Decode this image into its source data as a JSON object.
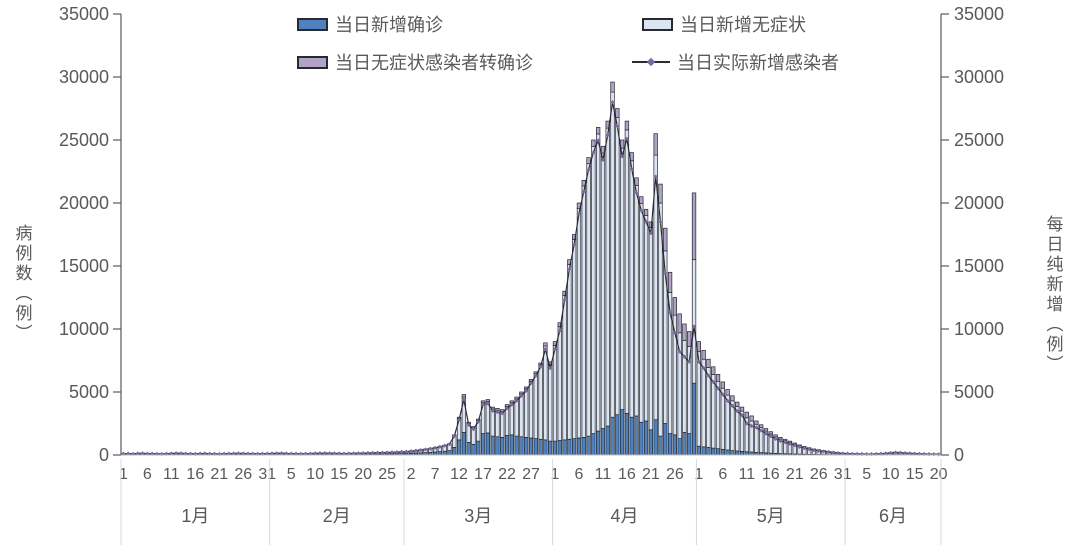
{
  "chart_data": {
    "type": "bar",
    "subtype": "stacked-bars-with-line-overlay",
    "title": "",
    "ylabel_left": "病例数（例）",
    "ylabel_right": "每日纯新增（例）",
    "ylim": [
      0,
      35000
    ],
    "yticks": [
      0,
      5000,
      10000,
      15000,
      20000,
      25000,
      30000,
      35000
    ],
    "grid": false,
    "legend_position": "top-inside-two-columns",
    "months": [
      {
        "label": "1月",
        "days": 31
      },
      {
        "label": "2月",
        "days": 28
      },
      {
        "label": "3月",
        "days": 31
      },
      {
        "label": "4月",
        "days": 30
      },
      {
        "label": "5月",
        "days": 31
      },
      {
        "label": "6月",
        "days": 20
      }
    ],
    "x_tick_interval_days": 5,
    "x_tick_labels": [
      "1",
      "6",
      "11",
      "16",
      "21",
      "26",
      "31",
      "5",
      "10",
      "15",
      "20",
      "25",
      "2",
      "7",
      "12",
      "17",
      "22",
      "27",
      "1",
      "6",
      "11",
      "16",
      "21",
      "26",
      "1",
      "6",
      "11",
      "16",
      "21",
      "26",
      "31",
      "5",
      "10",
      "15",
      "20"
    ],
    "colors": {
      "axis_text": "#595959",
      "axis_line": "#595959",
      "x_axis_line": "#bfbfbf",
      "separator": "#d9d9d9",
      "bar_border": "#23272f"
    },
    "series": [
      {
        "name": "当日新增确诊",
        "type": "bar",
        "stack_order": 0,
        "color": "#4f81bd",
        "values": [
          40,
          45,
          35,
          50,
          55,
          45,
          40,
          35,
          30,
          40,
          50,
          60,
          55,
          45,
          40,
          35,
          45,
          50,
          40,
          35,
          30,
          40,
          45,
          50,
          55,
          50,
          45,
          40,
          35,
          40,
          45,
          45,
          50,
          55,
          45,
          40,
          35,
          30,
          35,
          40,
          50,
          55,
          60,
          55,
          50,
          45,
          40,
          45,
          50,
          55,
          60,
          65,
          70,
          75,
          80,
          85,
          90,
          100,
          110,
          120,
          135,
          150,
          170,
          190,
          215,
          240,
          270,
          300,
          350,
          600,
          1200,
          1800,
          1000,
          850,
          1100,
          1700,
          1750,
          1500,
          1450,
          1400,
          1550,
          1600,
          1500,
          1450,
          1400,
          1350,
          1300,
          1250,
          1200,
          1100,
          1100,
          1150,
          1200,
          1250,
          1300,
          1350,
          1400,
          1500,
          1700,
          1900,
          2100,
          2300,
          3000,
          3200,
          3600,
          3300,
          3000,
          3100,
          2600,
          2700,
          2000,
          2800,
          1500,
          2500,
          1700,
          1600,
          1300,
          1800,
          1700,
          5700,
          700,
          650,
          600,
          550,
          500,
          450,
          400,
          350,
          320,
          290,
          260,
          240,
          210,
          190,
          170,
          150,
          130,
          110,
          100,
          90,
          80,
          70,
          60,
          50,
          45,
          40,
          35,
          30,
          25,
          22,
          20,
          15,
          13,
          12,
          11,
          10,
          10,
          12,
          14,
          16,
          20,
          25,
          22,
          19,
          16,
          14,
          12,
          10,
          9,
          8,
          7
        ]
      },
      {
        "name": "当日新增无症状",
        "type": "bar",
        "stack_order": 1,
        "color": "#dce6f2",
        "values": [
          70,
          75,
          65,
          80,
          85,
          75,
          70,
          65,
          60,
          70,
          80,
          90,
          85,
          75,
          70,
          65,
          75,
          80,
          70,
          65,
          60,
          70,
          75,
          80,
          85,
          80,
          75,
          70,
          65,
          70,
          75,
          85,
          90,
          95,
          85,
          80,
          75,
          70,
          75,
          80,
          90,
          95,
          100,
          95,
          90,
          85,
          80,
          85,
          90,
          95,
          100,
          105,
          110,
          115,
          120,
          125,
          130,
          140,
          150,
          160,
          185,
          210,
          240,
          270,
          305,
          350,
          400,
          460,
          530,
          950,
          1700,
          2800,
          1500,
          1300,
          1650,
          2450,
          2500,
          2150,
          2100,
          2050,
          2300,
          2550,
          2950,
          3400,
          3850,
          4500,
          5150,
          5900,
          7450,
          6050,
          7600,
          9030,
          11450,
          13870,
          15800,
          18230,
          19950,
          21620,
          22800,
          23580,
          21860,
          23640,
          25800,
          23600,
          20750,
          22500,
          20350,
          18300,
          17350,
          16300,
          16050,
          21000,
          18500,
          13700,
          11200,
          9500,
          8400,
          7300,
          6900,
          9800,
          7500,
          6950,
          6350,
          5850,
          5350,
          4850,
          4350,
          3950,
          3520,
          3190,
          2690,
          2460,
          2230,
          1980,
          1730,
          1520,
          1310,
          1150,
          1030,
          900,
          775,
          650,
          550,
          470,
          385,
          335,
          285,
          235,
          195,
          153,
          120,
          110,
          94,
          86,
          78,
          70,
          75,
          86,
          102,
          128,
          160,
          190,
          176,
          152,
          128,
          112,
          96,
          80,
          72,
          64,
          56
        ]
      },
      {
        "name": "当日无症状感染者转确诊",
        "type": "bar",
        "stack_order": 2,
        "color": "#b3a2c7",
        "values": [
          10,
          10,
          10,
          10,
          10,
          10,
          10,
          10,
          10,
          10,
          10,
          10,
          10,
          10,
          10,
          10,
          10,
          10,
          10,
          10,
          10,
          10,
          10,
          10,
          10,
          10,
          10,
          10,
          10,
          10,
          10,
          10,
          10,
          10,
          10,
          10,
          10,
          10,
          10,
          10,
          10,
          10,
          10,
          10,
          10,
          10,
          10,
          10,
          10,
          10,
          10,
          10,
          10,
          10,
          10,
          10,
          10,
          10,
          10,
          20,
          20,
          20,
          20,
          20,
          20,
          20,
          20,
          20,
          20,
          50,
          100,
          200,
          100,
          100,
          100,
          150,
          150,
          150,
          150,
          150,
          150,
          150,
          150,
          150,
          150,
          150,
          150,
          150,
          250,
          250,
          300,
          320,
          350,
          380,
          400,
          420,
          450,
          480,
          500,
          520,
          540,
          560,
          800,
          700,
          650,
          700,
          650,
          600,
          550,
          500,
          450,
          1700,
          1500,
          1800,
          1600,
          1400,
          1500,
          1300,
          1200,
          5300,
          800,
          700,
          650,
          600,
          550,
          500,
          450,
          400,
          360,
          320,
          450,
          400,
          260,
          230,
          200,
          180,
          160,
          140,
          120,
          110,
          95,
          80,
          70,
          60,
          50,
          45,
          40,
          35,
          30,
          25,
          20,
          15,
          13,
          12,
          11,
          10,
          10,
          12,
          14,
          16,
          20,
          25,
          22,
          19,
          16,
          14,
          12,
          10,
          9,
          8,
          7
        ]
      },
      {
        "name": "当日实际新增感染者",
        "type": "line",
        "color": "#2b2b33",
        "marker_color": "#7c68a4",
        "values": [
          100,
          110,
          90,
          120,
          130,
          110,
          100,
          90,
          80,
          100,
          120,
          140,
          130,
          110,
          100,
          90,
          110,
          120,
          100,
          90,
          80,
          100,
          110,
          120,
          130,
          120,
          110,
          100,
          90,
          100,
          110,
          120,
          130,
          140,
          120,
          110,
          100,
          90,
          100,
          110,
          130,
          140,
          150,
          140,
          130,
          120,
          110,
          120,
          130,
          140,
          150,
          160,
          170,
          180,
          190,
          200,
          210,
          230,
          250,
          260,
          300,
          340,
          390,
          440,
          500,
          570,
          650,
          740,
          860,
          1500,
          2800,
          4400,
          2400,
          2050,
          2650,
          4000,
          4100,
          3500,
          3400,
          3300,
          3700,
          4000,
          4300,
          4700,
          5100,
          5700,
          6300,
          7000,
          8400,
          6900,
          8400,
          9860,
          12300,
          14740,
          16700,
          19160,
          20900,
          22640,
          24000,
          24960,
          23420,
          25380,
          28000,
          26100,
          23700,
          25100,
          22700,
          20800,
          19400,
          18500,
          17600,
          22100,
          18500,
          14400,
          11300,
          9700,
          8200,
          7800,
          7400,
          10200,
          7400,
          6900,
          6300,
          5800,
          5300,
          4800,
          4300,
          3900,
          3480,
          3160,
          2500,
          2300,
          2180,
          1940,
          1700,
          1490,
          1280,
          1120,
          1010,
          880,
          760,
          640,
          540,
          460,
          380,
          330,
          280,
          230,
          190,
          150,
          120,
          110,
          94,
          86,
          78,
          70,
          75,
          86,
          102,
          128,
          160,
          190,
          176,
          152,
          128,
          112,
          96,
          80,
          72,
          64,
          56
        ]
      }
    ]
  }
}
